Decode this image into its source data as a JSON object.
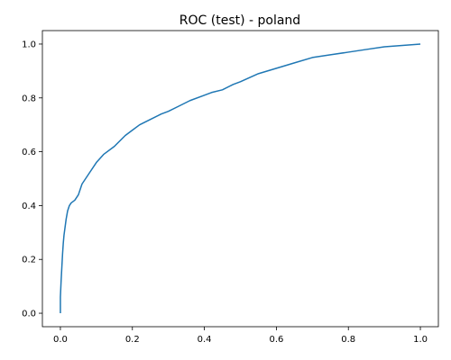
{
  "chart_data": {
    "type": "line",
    "title": "ROC (test) - poland",
    "xlabel": "",
    "ylabel": "",
    "xlim": [
      -0.05,
      1.05
    ],
    "ylim": [
      -0.05,
      1.05
    ],
    "xticks": [
      "0.0",
      "0.2",
      "0.4",
      "0.6",
      "0.8",
      "1.0"
    ],
    "yticks": [
      "0.0",
      "0.2",
      "0.4",
      "0.6",
      "0.8",
      "1.0"
    ],
    "grid": false,
    "legend": "none",
    "series": [
      {
        "color": "#1f77b4",
        "x": [
          0.0,
          0.0,
          0.002,
          0.004,
          0.006,
          0.008,
          0.01,
          0.013,
          0.016,
          0.02,
          0.025,
          0.03,
          0.04,
          0.05,
          0.06,
          0.07,
          0.08,
          0.1,
          0.12,
          0.15,
          0.18,
          0.2,
          0.22,
          0.25,
          0.28,
          0.3,
          0.33,
          0.36,
          0.4,
          0.42,
          0.45,
          0.48,
          0.5,
          0.55,
          0.6,
          0.65,
          0.7,
          0.75,
          0.8,
          0.85,
          0.9,
          0.95,
          1.0
        ],
        "y": [
          0.0,
          0.06,
          0.12,
          0.17,
          0.22,
          0.26,
          0.29,
          0.32,
          0.35,
          0.38,
          0.4,
          0.41,
          0.42,
          0.44,
          0.48,
          0.5,
          0.52,
          0.56,
          0.59,
          0.62,
          0.66,
          0.68,
          0.7,
          0.72,
          0.74,
          0.75,
          0.77,
          0.79,
          0.81,
          0.82,
          0.83,
          0.85,
          0.86,
          0.89,
          0.91,
          0.93,
          0.95,
          0.96,
          0.97,
          0.98,
          0.99,
          0.995,
          1.0
        ]
      }
    ]
  }
}
